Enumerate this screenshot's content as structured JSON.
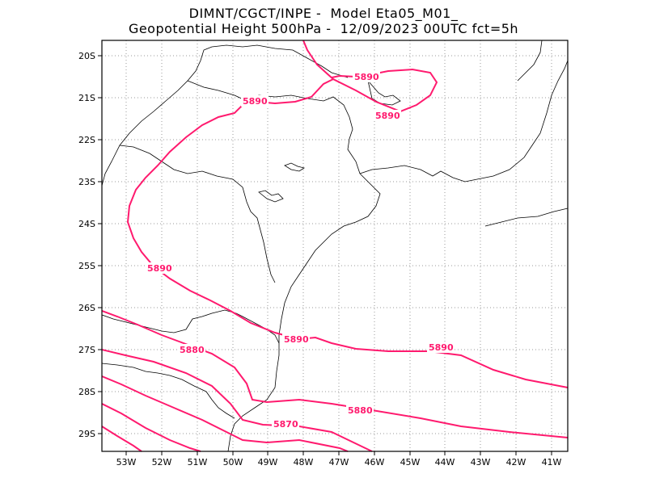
{
  "header": {
    "line1": "DIMNT/CGCT/INPE -  Model Eta05_M01_",
    "line2": "Geopotential Height 500hPa -  12/09/2023 00UTC fct=5h"
  },
  "axes": {
    "lat_labels": [
      "20S",
      "21S",
      "22S",
      "23S",
      "24S",
      "25S",
      "26S",
      "27S",
      "28S",
      "29S"
    ],
    "lon_labels": [
      "53W",
      "52W",
      "51W",
      "50W",
      "49W",
      "48W",
      "47W",
      "46W",
      "45W",
      "44W",
      "43W",
      "42W",
      "41W"
    ]
  },
  "contours": {
    "color": "#ff1a6e",
    "labels": [
      "5890",
      "5890",
      "5890",
      "5890",
      "5890",
      "5890",
      "5880",
      "5880",
      "5870"
    ]
  },
  "colors": {
    "contour": "#ff1a6e",
    "coast": "#000000",
    "grid": "#999999"
  }
}
